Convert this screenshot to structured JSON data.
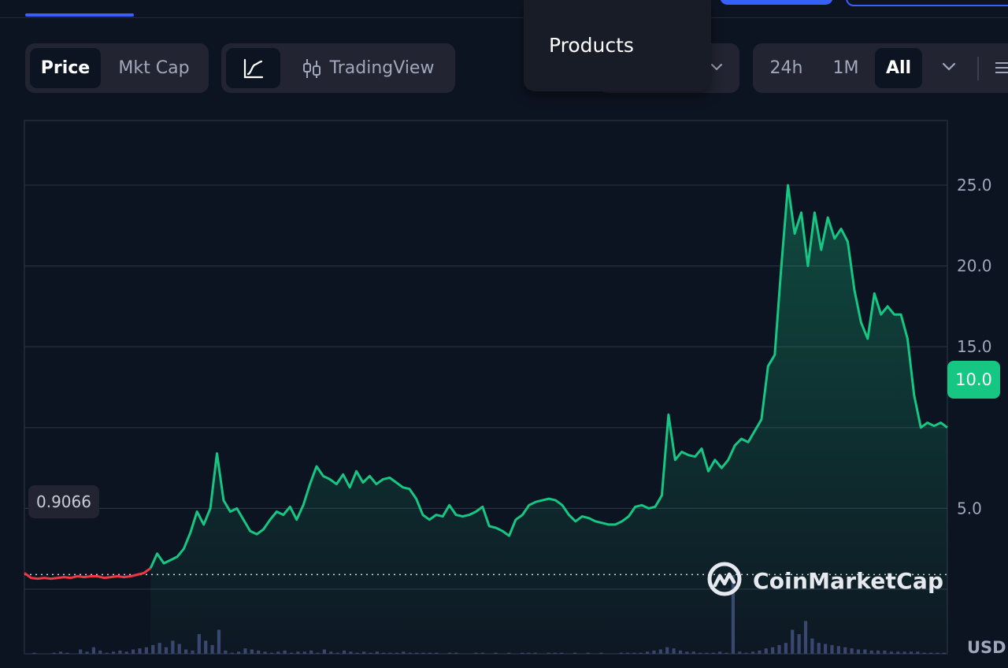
{
  "toolbar": {
    "metric_tabs": [
      {
        "label": "Price",
        "active": true
      },
      {
        "label": "Mkt Cap",
        "active": false
      }
    ],
    "chart_modes": [
      {
        "icon": "line-chart-icon",
        "label": "",
        "active": true
      },
      {
        "icon": "candlestick-icon",
        "label": "TradingView",
        "active": false
      }
    ],
    "ranges": [
      {
        "label": "24h",
        "active": false
      },
      {
        "label": "1M",
        "active": false
      },
      {
        "label": "All",
        "active": true
      }
    ]
  },
  "dropdown": {
    "items": [
      "Products"
    ]
  },
  "colors": {
    "background": "#0d1421",
    "up": "#16c784",
    "down": "#ea3943",
    "accent": "#3861fb"
  },
  "brand": "CoinMarketCap",
  "currency": "USD",
  "chart_data": {
    "type": "line",
    "title": "",
    "xlabel": "",
    "ylabel": "",
    "ylim": [
      -4,
      29
    ],
    "yticks": [
      5.0,
      10.0,
      15.0,
      20.0,
      25.0
    ],
    "ytick_labels": [
      "5.0",
      "10.0",
      "15.0",
      "20.0",
      "25.0"
    ],
    "grid": true,
    "current_price": "10.0",
    "open_price": "0.9066",
    "baseline": 0.9066,
    "series": [
      {
        "values": [
          1.0,
          0.7,
          0.65,
          0.7,
          0.65,
          0.7,
          0.75,
          0.7,
          0.8,
          0.75,
          0.8,
          0.8,
          0.7,
          0.75,
          0.8,
          0.75,
          0.8,
          0.9,
          1.0,
          1.3,
          2.2,
          1.6,
          1.8,
          2.0,
          2.5,
          3.5,
          4.8,
          4.0,
          5.0,
          8.4,
          5.5,
          4.8,
          5.0,
          4.3,
          3.6,
          3.4,
          3.7,
          4.3,
          4.8,
          4.6,
          5.1,
          4.3,
          5.2,
          6.5,
          7.6,
          7.0,
          6.8,
          6.5,
          7.1,
          6.3,
          7.3,
          6.6,
          7.0,
          6.5,
          6.8,
          6.9,
          6.6,
          6.3,
          6.2,
          5.6,
          4.6,
          4.3,
          4.6,
          4.5,
          5.2,
          4.6,
          4.5,
          4.6,
          4.8,
          5.1,
          3.9,
          3.8,
          3.6,
          3.3,
          4.3,
          4.6,
          5.2,
          5.4,
          5.5,
          5.6,
          5.5,
          5.2,
          4.6,
          4.2,
          4.5,
          4.4,
          4.2,
          4.1,
          4.0,
          4.0,
          4.2,
          4.5,
          5.1,
          5.2,
          5.0,
          5.1,
          5.8,
          10.8,
          8.0,
          8.5,
          8.3,
          8.2,
          8.7,
          7.3,
          8.0,
          7.5,
          8.0,
          8.9,
          9.3,
          9.1,
          9.8,
          10.5,
          13.8,
          14.5,
          20.0,
          25.0,
          22.0,
          23.3,
          20.0,
          23.3,
          21.0,
          23.0,
          21.7,
          22.3,
          21.5,
          18.5,
          16.5,
          15.5,
          18.3,
          17.0,
          17.5,
          17.0,
          17.0,
          15.5,
          12.0,
          10.0,
          10.3,
          10.1,
          10.3,
          10.0
        ]
      }
    ],
    "volume": [
      0,
      1,
      0,
      0,
      1,
      2,
      1,
      0,
      4,
      2,
      6,
      3,
      1,
      2,
      3,
      2,
      4,
      5,
      6,
      8,
      10,
      6,
      12,
      9,
      4,
      3,
      18,
      12,
      8,
      22,
      3,
      1,
      2,
      5,
      4,
      3,
      2,
      1,
      2,
      3,
      1,
      2,
      2,
      3,
      1,
      4,
      2,
      1,
      3,
      2,
      1,
      2,
      1,
      2,
      1,
      1,
      1,
      2,
      1,
      1,
      1,
      1,
      1,
      0,
      1,
      1,
      0,
      0,
      1,
      1,
      0,
      1,
      0,
      1,
      0,
      1,
      1,
      1,
      0,
      1,
      1,
      1,
      0,
      1,
      0,
      1,
      0,
      1,
      0,
      0,
      1,
      1,
      1,
      1,
      2,
      3,
      4,
      6,
      5,
      3,
      2,
      2,
      1,
      1,
      1,
      2,
      1,
      72,
      2,
      1,
      2,
      3,
      5,
      6,
      8,
      10,
      22,
      18,
      30,
      14,
      10,
      9,
      8,
      7,
      6,
      5,
      4,
      4,
      3,
      3,
      3,
      2,
      2,
      2,
      2,
      2,
      1,
      1,
      1,
      1
    ]
  }
}
